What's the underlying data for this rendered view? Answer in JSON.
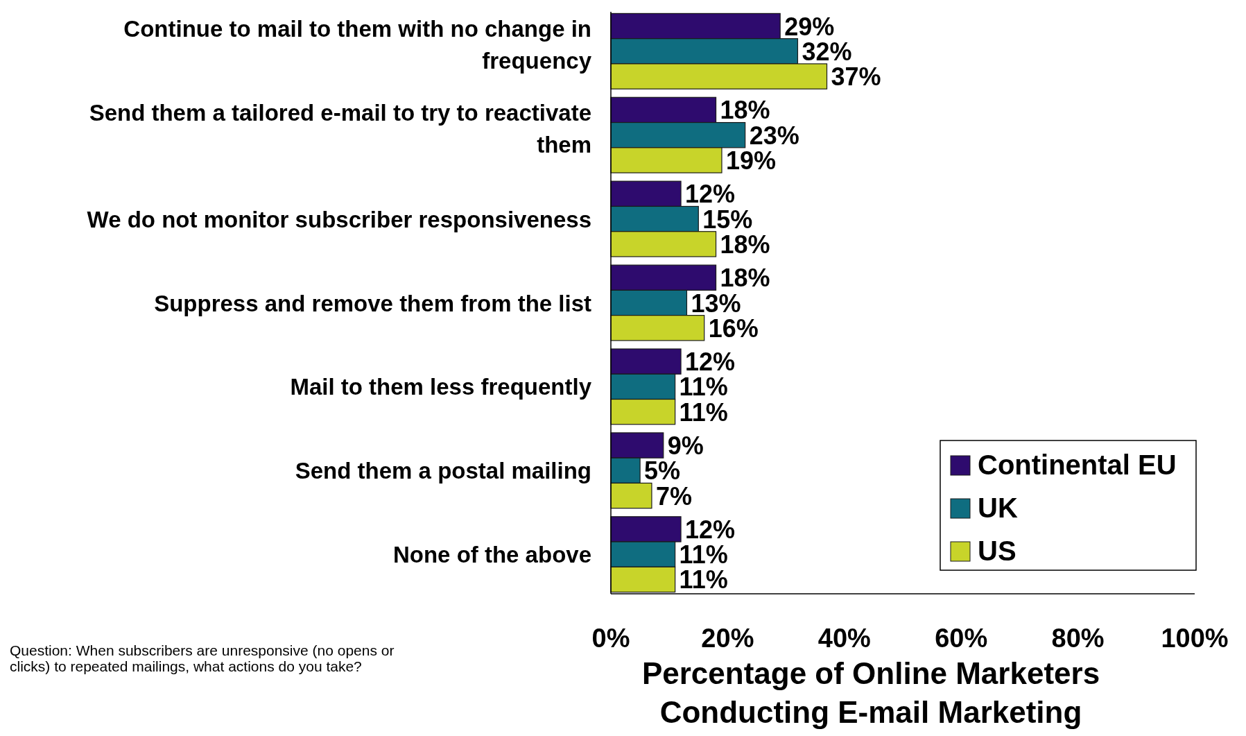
{
  "chart_data": {
    "type": "bar",
    "orientation": "horizontal",
    "xlabel": "Percentage of Online Marketers Conducting E-mail Marketing",
    "categories": [
      "Continue to mail to them with no change in frequency",
      "Send them a tailored e-mail to try to reactivate them",
      "We do not monitor subscriber responsiveness",
      "Suppress and remove them from the list",
      "Mail to them less frequently",
      "Send them a postal mailing",
      "None of the above"
    ],
    "series": [
      {
        "name": "Continental EU",
        "color": "#2e0b6e",
        "values": [
          29,
          18,
          12,
          18,
          12,
          9,
          12
        ],
        "value_labels": [
          "29%",
          "18%",
          "12%",
          "18%",
          "12%",
          "9%",
          "12%"
        ]
      },
      {
        "name": "UK",
        "color": "#0f6d80",
        "values": [
          32,
          23,
          15,
          13,
          11,
          5,
          11
        ],
        "value_labels": [
          "32%",
          "23%",
          "15%",
          "13%",
          "11%",
          "5%",
          "11%"
        ]
      },
      {
        "name": "US",
        "color": "#c8d42a",
        "values": [
          37,
          19,
          18,
          16,
          11,
          7,
          11
        ],
        "value_labels": [
          "37%",
          "19%",
          "18%",
          "16%",
          "11%",
          "7%",
          "11%"
        ]
      }
    ],
    "xlim": [
      0,
      100
    ],
    "xticks": [
      {
        "value": 0,
        "label": "0%"
      },
      {
        "value": 20,
        "label": "20%"
      },
      {
        "value": 40,
        "label": "40%"
      },
      {
        "value": 60,
        "label": "60%"
      },
      {
        "value": 80,
        "label": "80%"
      },
      {
        "value": 100,
        "label": "100%"
      }
    ],
    "grid": false,
    "legend": "bottom right",
    "annotations": [
      "Question: When subscribers are unresponsive (no opens or clicks) to repeated mailings, what actions do you take?"
    ]
  }
}
